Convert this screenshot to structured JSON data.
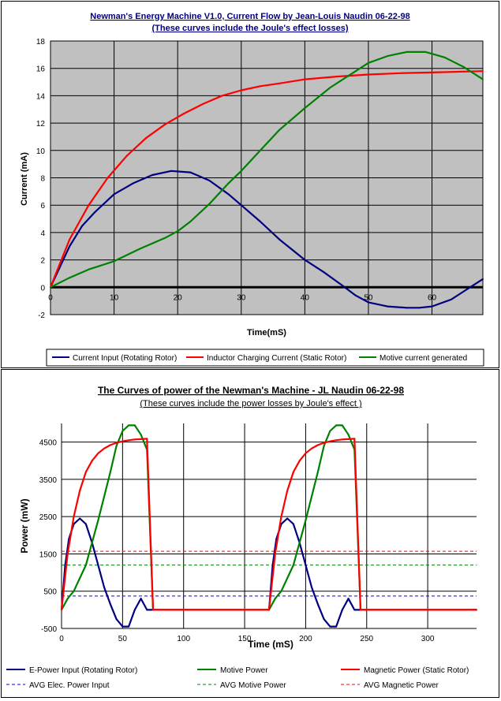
{
  "chart_data": [
    {
      "type": "line",
      "title": "Newman's Energy Machine V1.0, Current Flow by Jean-Louis Naudin  06-22-98",
      "subtitle": "(These curves include the Joule's effect losses)",
      "xlabel": "Time(mS)",
      "ylabel": "Current (mA)",
      "xlim": [
        0,
        68
      ],
      "ylim": [
        -2,
        18
      ],
      "x_ticks": [
        0,
        10,
        20,
        30,
        40,
        50,
        60
      ],
      "y_ticks": [
        -2,
        0,
        2,
        4,
        6,
        8,
        10,
        12,
        14,
        16,
        18
      ],
      "grid": true,
      "plot_background": "#c0c0c0",
      "legend_position": "bottom",
      "series": [
        {
          "name": "Current Input (Rotating Rotor)",
          "color": "#000080",
          "x": [
            0,
            3,
            5,
            7,
            10,
            13,
            16,
            19,
            22,
            25,
            28,
            30,
            33,
            36,
            40,
            43,
            46,
            48,
            50,
            53,
            56,
            58,
            60,
            63,
            65,
            68
          ],
          "y": [
            0,
            3,
            4.5,
            5.5,
            6.8,
            7.6,
            8.2,
            8.5,
            8.4,
            7.8,
            6.8,
            6,
            4.8,
            3.5,
            2,
            1.1,
            0.1,
            -0.6,
            -1.1,
            -1.4,
            -1.5,
            -1.5,
            -1.4,
            -0.9,
            -0.3,
            0.6
          ]
        },
        {
          "name": "Inductor Charging Current (Static Rotor)",
          "color": "#ff0000",
          "x": [
            0,
            3,
            6,
            9,
            12,
            15,
            18,
            21,
            24,
            27,
            30,
            33,
            36,
            40,
            45,
            50,
            55,
            60,
            68
          ],
          "y": [
            0,
            3.5,
            6,
            8,
            9.6,
            10.9,
            11.9,
            12.7,
            13.4,
            14,
            14.4,
            14.7,
            14.9,
            15.2,
            15.4,
            15.55,
            15.65,
            15.7,
            15.8
          ]
        },
        {
          "name": "Motive current generated",
          "color": "#008000",
          "x": [
            0,
            3,
            6,
            10,
            14,
            18,
            20,
            22,
            25,
            28,
            30,
            33,
            36,
            40,
            44,
            48,
            50,
            53,
            56,
            59,
            62,
            65,
            68
          ],
          "y": [
            0,
            0.7,
            1.3,
            1.9,
            2.8,
            3.6,
            4.1,
            4.8,
            6.1,
            7.6,
            8.5,
            10,
            11.5,
            13.1,
            14.6,
            15.8,
            16.4,
            16.9,
            17.2,
            17.2,
            16.8,
            16.1,
            15.2
          ]
        }
      ]
    },
    {
      "type": "line",
      "title": "The Curves of power of the Newman's Machine - JL Naudin 06-22-98",
      "subtitle": "(These curves include the power losses by Joule's effect )",
      "xlabel": "Time (mS)",
      "ylabel": "Power (mW)",
      "xlim": [
        0,
        340
      ],
      "ylim": [
        -500,
        5000
      ],
      "x_ticks": [
        0,
        50,
        100,
        150,
        200,
        250,
        300
      ],
      "y_ticks": [
        -500,
        500,
        1500,
        2500,
        3500,
        4500
      ],
      "grid": true,
      "plot_background": "#ffffff",
      "legend_position": "bottom",
      "series": [
        {
          "name": "E-Power Input (Rotating Rotor)",
          "color": "#000080",
          "dashed": false,
          "x": [
            0,
            3,
            6,
            10,
            15,
            20,
            25,
            30,
            35,
            40,
            45,
            50,
            55,
            60,
            65,
            70,
            75,
            170,
            173,
            176,
            180,
            185,
            190,
            195,
            200,
            205,
            210,
            215,
            220,
            225,
            230,
            235,
            240,
            245,
            340
          ],
          "y": [
            0,
            1200,
            1900,
            2300,
            2450,
            2300,
            1800,
            1200,
            600,
            150,
            -250,
            -450,
            -450,
            0,
            300,
            0,
            0,
            0,
            1200,
            1900,
            2300,
            2450,
            2300,
            1800,
            1200,
            600,
            150,
            -250,
            -450,
            -450,
            0,
            300,
            0,
            0,
            0
          ]
        },
        {
          "name": "Motive Power",
          "color": "#008000",
          "dashed": false,
          "x": [
            0,
            5,
            10,
            20,
            30,
            40,
            45,
            50,
            55,
            60,
            65,
            70,
            75,
            170,
            175,
            180,
            190,
            200,
            210,
            215,
            220,
            225,
            230,
            235,
            240,
            245,
            340
          ],
          "y": [
            0,
            300,
            500,
            1200,
            2400,
            3700,
            4400,
            4800,
            4950,
            4950,
            4700,
            4300,
            0,
            0,
            300,
            500,
            1200,
            2400,
            3700,
            4400,
            4800,
            4950,
            4950,
            4700,
            4300,
            0,
            0
          ]
        },
        {
          "name": "Magnetic Power (Static Rotor)",
          "color": "#ff0000",
          "dashed": false,
          "x": [
            0,
            5,
            10,
            15,
            20,
            25,
            30,
            35,
            40,
            45,
            50,
            55,
            60,
            65,
            70,
            75,
            170,
            175,
            180,
            185,
            190,
            195,
            200,
            205,
            210,
            215,
            220,
            225,
            230,
            235,
            240,
            245,
            340
          ],
          "y": [
            0,
            1500,
            2500,
            3200,
            3700,
            4000,
            4200,
            4330,
            4420,
            4480,
            4520,
            4550,
            4570,
            4580,
            4590,
            0,
            0,
            1500,
            2500,
            3200,
            3700,
            4000,
            4200,
            4330,
            4420,
            4480,
            4520,
            4550,
            4570,
            4580,
            4590,
            0,
            0
          ]
        },
        {
          "name": "AVG Elec. Power Input",
          "color": "#0000ff",
          "dashed": true,
          "x": [
            0,
            340
          ],
          "y": [
            370,
            370
          ]
        },
        {
          "name": "AVG Motive Power",
          "color": "#008000",
          "dashed": true,
          "x": [
            0,
            340
          ],
          "y": [
            1200,
            1200
          ]
        },
        {
          "name": "AVG Magnetic Power",
          "color": "#ff0000",
          "dashed": true,
          "x": [
            0,
            340
          ],
          "y": [
            1570,
            1570
          ]
        }
      ]
    }
  ]
}
